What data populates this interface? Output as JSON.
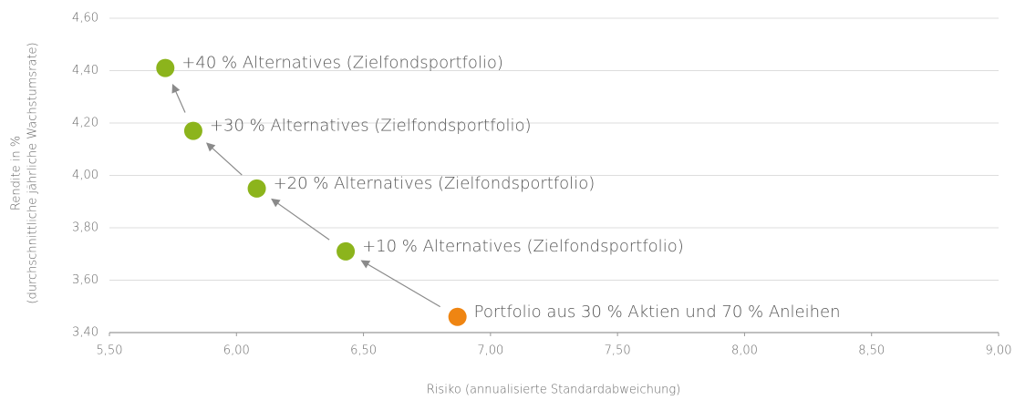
{
  "chart_data": {
    "type": "scatter",
    "y_label_lines": [
      "Rendite in %",
      "(durchschnittliche jährliche Wachstumsrate)"
    ],
    "x_label": "Risiko (annualisierte Standardabweichung)",
    "x": [
      6.87,
      6.43,
      6.08,
      5.83,
      5.72
    ],
    "values": [
      3.46,
      3.71,
      3.95,
      4.17,
      4.41
    ],
    "point_labels": [
      "Portfolio aus 30 % Aktien und 70 % Anleihen",
      "+10 % Alternatives (Zielfondsportfolio)",
      "+20 % Alternatives (Zielfondsportfolio)",
      "+30 % Alternatives (Zielfondsportfolio)",
      "+40 % Alternatives (Zielfondsportfolio)"
    ],
    "colors": [
      "#ef8512",
      "#8cb41c",
      "#8cb41c",
      "#8cb41c",
      "#8cb41c"
    ],
    "xlim": [
      5.5,
      9.0
    ],
    "xticks": [
      {
        "value": 5.5,
        "label": "5,50"
      },
      {
        "value": 6.0,
        "label": "6,00"
      },
      {
        "value": 6.5,
        "label": "6,50"
      },
      {
        "value": 7.0,
        "label": "7,00"
      },
      {
        "value": 7.5,
        "label": "7,50"
      },
      {
        "value": 8.0,
        "label": "8,00"
      },
      {
        "value": 8.5,
        "label": "8,50"
      },
      {
        "value": 9.0,
        "label": "9,00"
      }
    ],
    "ylim": [
      3.4,
      4.6
    ],
    "yticks": [
      {
        "value": 3.4,
        "label": "3,40"
      },
      {
        "value": 3.6,
        "label": "3,60"
      },
      {
        "value": 3.8,
        "label": "3,80"
      },
      {
        "value": 4.0,
        "label": "4,00"
      },
      {
        "value": 4.2,
        "label": "4,20"
      },
      {
        "value": 4.4,
        "label": "4,40"
      },
      {
        "value": 4.6,
        "label": "4,60"
      }
    ],
    "grid": true
  }
}
